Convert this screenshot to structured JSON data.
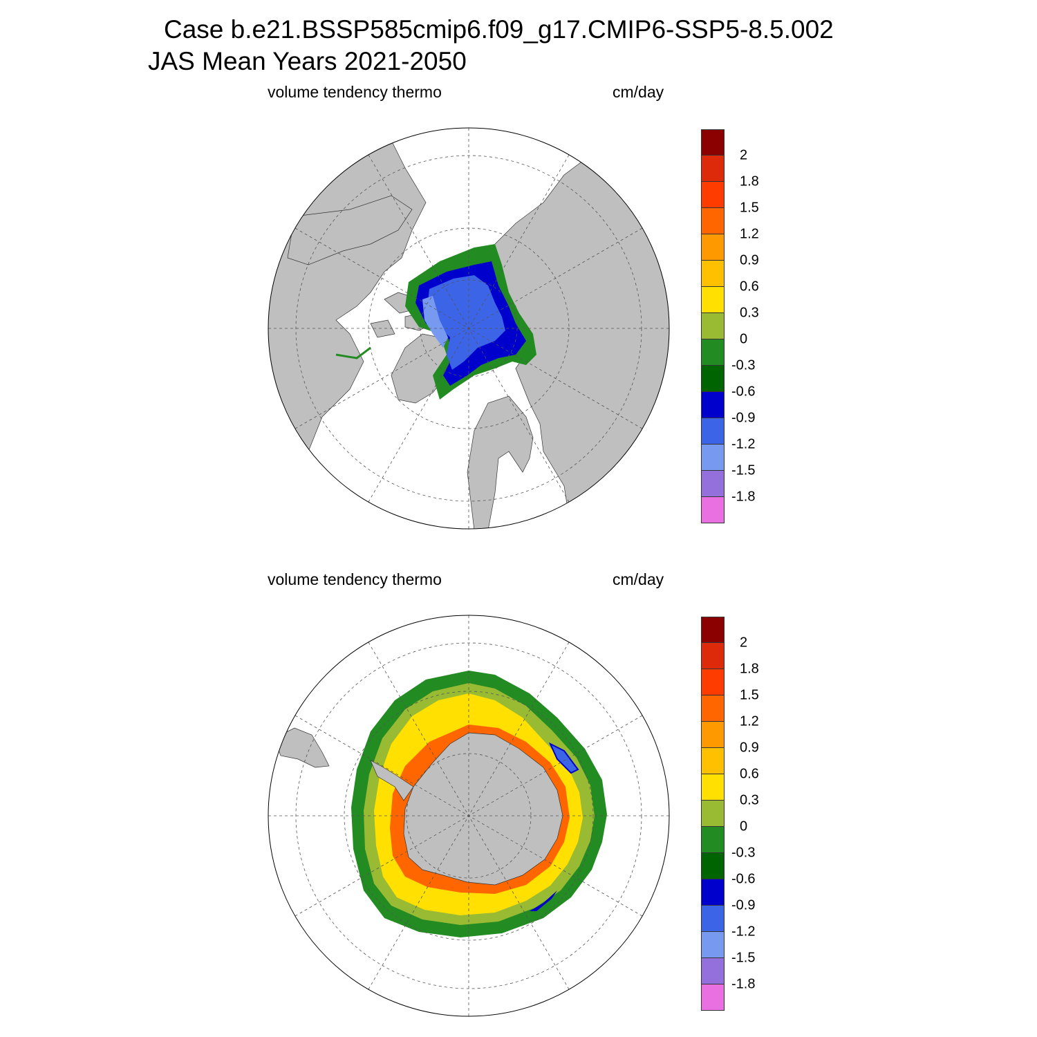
{
  "header": {
    "line1": "Case b.e21.BSSP585cmip6.f09_g17.CMIP6-SSP5-8.5.002",
    "line2": "JAS Mean   Years 2021-2050"
  },
  "panels": [
    {
      "id": "north",
      "variable": "volume tendency thermo",
      "units": "cm/day",
      "hemisphere": "north-polar-stereographic"
    },
    {
      "id": "south",
      "variable": "volume tendency thermo",
      "units": "cm/day",
      "hemisphere": "south-polar-stereographic"
    }
  ],
  "colorbar": {
    "labels": [
      "2",
      "1.8",
      "1.5",
      "1.2",
      "0.9",
      "0.6",
      "0.3",
      "0",
      "-0.3",
      "-0.6",
      "-0.9",
      "-1.2",
      "-1.5",
      "-1.8"
    ],
    "colors": [
      "#8b0000",
      "#dd2a0a",
      "#ff3c00",
      "#ff6600",
      "#ff9900",
      "#ffc000",
      "#ffe000",
      "#99bb33",
      "#228b22",
      "#006400",
      "#0000cc",
      "#3c64e6",
      "#7799f0",
      "#9370db",
      "#e870e0"
    ]
  },
  "colors": {
    "land": "#bfbfbf",
    "ocean": "#ffffff",
    "grid": "#555555"
  }
}
